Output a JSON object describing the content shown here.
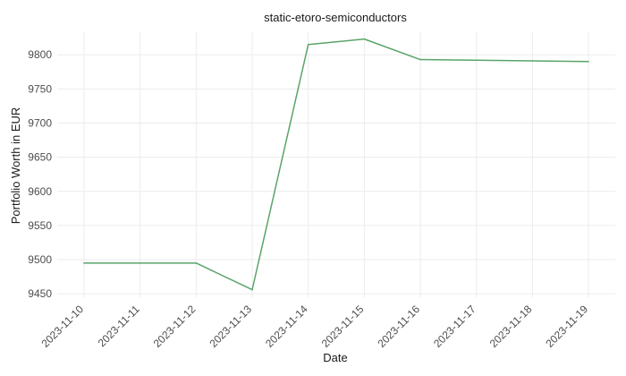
{
  "chart_data": {
    "type": "line",
    "title": "static-etoro-semiconductors",
    "xlabel": "Date",
    "ylabel": "Portfolio Worth in EUR",
    "x": [
      "2023-11-10",
      "2023-11-11",
      "2023-11-12",
      "2023-11-13",
      "2023-11-14",
      "2023-11-15",
      "2023-11-16",
      "2023-11-17",
      "2023-11-18",
      "2023-11-19"
    ],
    "yticks": [
      9450,
      9500,
      9550,
      9600,
      9650,
      9700,
      9750,
      9800
    ],
    "ylim": [
      9445,
      9833
    ],
    "grid": true,
    "legend": "none",
    "series": [
      {
        "color": "#5aa469",
        "values": [
          9495,
          9495,
          9495,
          9456,
          9815,
          9823,
          9793,
          9792,
          9791,
          9790
        ]
      }
    ]
  }
}
